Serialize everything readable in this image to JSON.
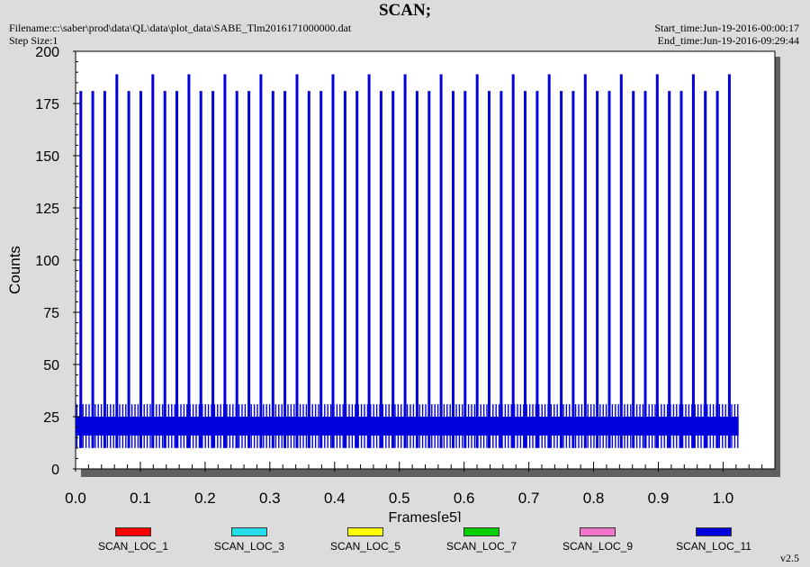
{
  "header": {
    "title": "SCAN;",
    "filename": "Filename:c:\\saber\\prod\\data\\QL\\data\\plot_data\\SABE_Tlm2016171000000.dat",
    "step_size": "Step Size:1",
    "start_time": "Start_time:Jun-19-2016-00:00:17",
    "end_time": "End_time:Jun-19-2016-09:29:44"
  },
  "version": "v2.5",
  "chart_data": {
    "type": "line",
    "title": "SCAN;",
    "xlabel": "Frames[e5]",
    "ylabel": "Counts",
    "xlim": [
      0.0,
      1.08
    ],
    "ylim": [
      0,
      200
    ],
    "x_ticks": [
      "0.0",
      "0.1",
      "0.2",
      "0.3",
      "0.4",
      "0.5",
      "0.6",
      "0.7",
      "0.8",
      "0.9",
      "1.0"
    ],
    "y_ticks": [
      "0",
      "25",
      "50",
      "75",
      "100",
      "125",
      "150",
      "175",
      "200"
    ],
    "legend_position": "bottom",
    "series": [
      {
        "name": "SCAN_LOC_1",
        "color": "#ff0000"
      },
      {
        "name": "SCAN_LOC_3",
        "color": "#22dde8"
      },
      {
        "name": "SCAN_LOC_5",
        "color": "#ffff00"
      },
      {
        "name": "SCAN_LOC_7",
        "color": "#00d000"
      },
      {
        "name": "SCAN_LOC_9",
        "color": "#ee77cc"
      },
      {
        "name": "SCAN_LOC_11",
        "color": "#0000dd",
        "baseline_band": [
          16,
          25
        ],
        "spike_max": 181,
        "spike_max_tall": 189,
        "tall_spike_x": [
          0.055,
          0.112,
          0.167,
          0.223,
          0.279,
          0.335,
          0.391,
          0.447,
          0.503,
          0.559,
          0.615,
          0.671,
          0.727,
          0.783,
          0.839,
          0.895,
          0.951,
          1.007
        ],
        "x_end": 1.024
      }
    ]
  }
}
